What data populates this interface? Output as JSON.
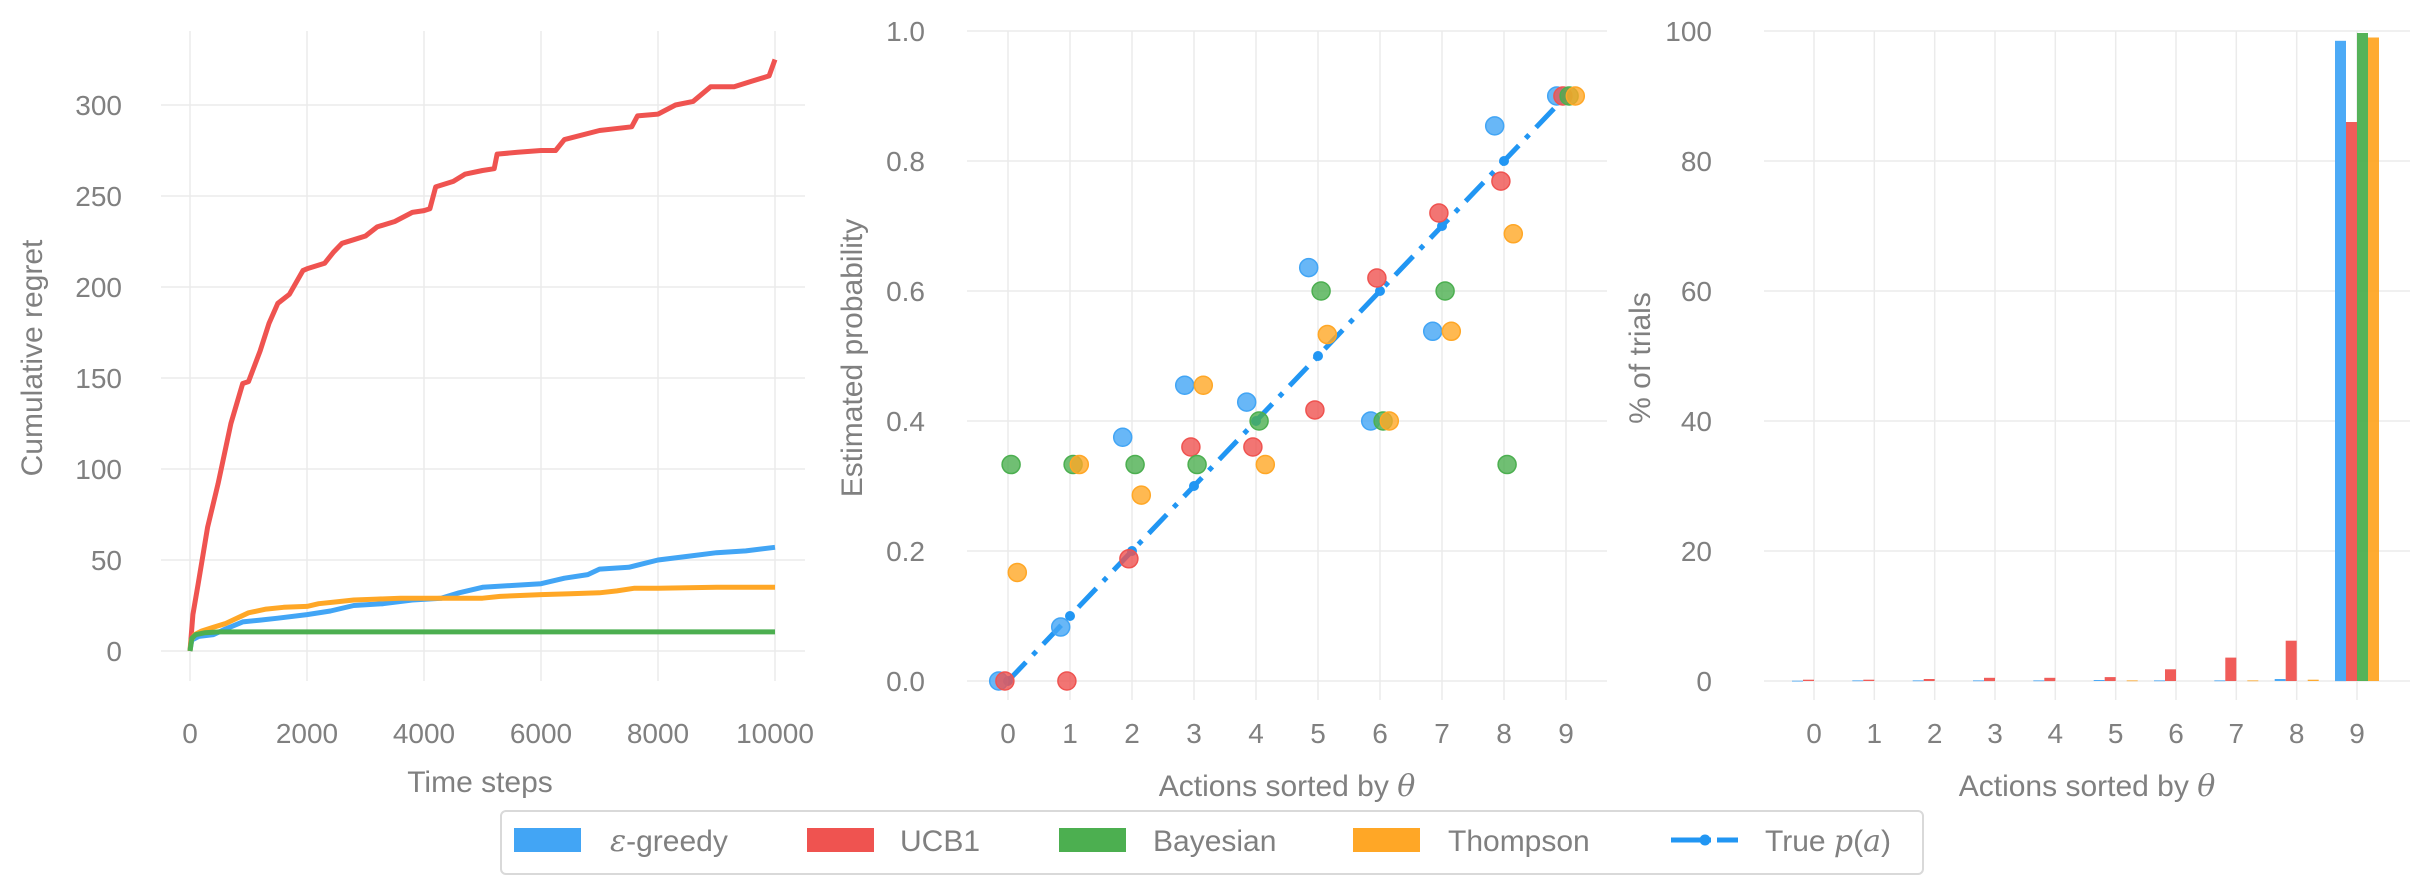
{
  "colors": {
    "epsilon_greedy": "#42a5f5",
    "ucb1": "#ef5350",
    "bayesian": "#4caf50",
    "thompson": "#ffa726",
    "true_p": "#2196f3",
    "text": "#808080",
    "grid": "#ebebeb"
  },
  "legend": {
    "items": [
      {
        "key": "epsilon_greedy",
        "label_symbol": "ε",
        "label_rest": "-greedy",
        "kind": "patch"
      },
      {
        "key": "ucb1",
        "label": "UCB1",
        "kind": "patch"
      },
      {
        "key": "bayesian",
        "label": "Bayesian",
        "kind": "patch"
      },
      {
        "key": "thompson",
        "label": "Thompson",
        "kind": "patch"
      },
      {
        "key": "true_p",
        "label_prefix": "True ",
        "label_math": "p",
        "label_paren_open": "(",
        "label_math_arg": "a",
        "label_paren_close": ")",
        "kind": "line"
      }
    ],
    "placement": "bottom-center"
  },
  "chart_data": [
    {
      "type": "line",
      "title": "",
      "xlabel": "Time steps",
      "ylabel": "Cumulative regret",
      "xlim": [
        0,
        10000
      ],
      "ylim": [
        -18,
        330
      ],
      "xticks": [
        0,
        2000,
        4000,
        6000,
        8000,
        10000
      ],
      "xtick_labels": [
        "0",
        "2000",
        "4000",
        "6000",
        "8000",
        "10000"
      ],
      "yticks": [
        0,
        50,
        100,
        150,
        200,
        250,
        300
      ],
      "ytick_labels": [
        "0",
        "50",
        "100",
        "150",
        "200",
        "250",
        "300"
      ],
      "grid": true,
      "series": [
        {
          "name": "UCB1",
          "key": "ucb1",
          "x": [
            0,
            50,
            140,
            300,
            480,
            700,
            900,
            1000,
            1200,
            1350,
            1500,
            1700,
            1930,
            2000,
            2300,
            2450,
            2600,
            2800,
            3000,
            3200,
            3500,
            3800,
            4000,
            4100,
            4200,
            4500,
            4700,
            5000,
            5200,
            5250,
            5600,
            6000,
            6250,
            6400,
            7000,
            7550,
            7650,
            8000,
            8300,
            8600,
            8900,
            9300,
            9600,
            9900,
            10000
          ],
          "y": [
            0,
            20,
            37,
            68,
            92,
            125,
            147,
            148,
            165,
            180,
            191,
            196,
            209,
            210,
            213,
            219,
            224,
            226,
            228,
            233,
            236,
            241,
            242,
            243,
            255,
            258,
            262,
            264,
            265,
            273,
            274,
            275,
            275,
            281,
            286,
            288,
            294,
            295,
            300,
            302,
            310,
            310,
            313,
            316,
            325
          ]
        },
        {
          "name": "ε-greedy",
          "key": "epsilon_greedy",
          "x": [
            0,
            30,
            150,
            400,
            600,
            900,
            1200,
            1500,
            2000,
            2400,
            2800,
            3300,
            3800,
            4300,
            4600,
            5000,
            5500,
            6000,
            6400,
            6800,
            7000,
            7500,
            8000,
            8500,
            9000,
            9500,
            10000
          ],
          "y": [
            0,
            6,
            8,
            9,
            12,
            16,
            17,
            18,
            20,
            22,
            25,
            26,
            28,
            29,
            32,
            35,
            36,
            37,
            40,
            42,
            45,
            46,
            50,
            52,
            54,
            55,
            57
          ]
        },
        {
          "name": "Bayesian",
          "key": "bayesian",
          "x": [
            0,
            30,
            100,
            250,
            500,
            10000
          ],
          "y": [
            0,
            7,
            9,
            10,
            10.5,
            10.5
          ]
        },
        {
          "name": "Thompson",
          "key": "thompson",
          "x": [
            0,
            20,
            80,
            200,
            400,
            600,
            800,
            1000,
            1300,
            1600,
            2000,
            2200,
            2500,
            2800,
            3200,
            3600,
            4000,
            5000,
            5300,
            6000,
            6500,
            7000,
            7300,
            7600,
            8000,
            9000,
            10000
          ],
          "y": [
            0,
            6,
            9,
            11,
            13,
            15,
            18,
            21,
            23,
            24,
            24.5,
            26,
            27,
            28,
            28.5,
            29,
            29,
            29,
            30,
            31,
            31.5,
            32,
            33,
            34.5,
            34.5,
            35,
            35
          ]
        }
      ]
    },
    {
      "type": "scatter",
      "title": "",
      "xlabel_prefix": "Actions sorted by ",
      "xlabel_symbol": "θ",
      "ylabel": "Estimated probability",
      "xlim": [
        -0.5,
        9.5
      ],
      "ylim": [
        -0.04,
        1.0
      ],
      "xticks": [
        0,
        1,
        2,
        3,
        4,
        5,
        6,
        7,
        8,
        9
      ],
      "xtick_labels": [
        "0",
        "1",
        "2",
        "3",
        "4",
        "5",
        "6",
        "7",
        "8",
        "9"
      ],
      "yticks": [
        0.0,
        0.2,
        0.4,
        0.6,
        0.8,
        1.0
      ],
      "ytick_labels": [
        "0.0",
        "0.2",
        "0.4",
        "0.6",
        "0.8",
        "1.0"
      ],
      "grid": true,
      "x": [
        0,
        1,
        2,
        3,
        4,
        5,
        6,
        7,
        8,
        9
      ],
      "series": [
        {
          "name": "ε-greedy",
          "key": "epsilon_greedy",
          "offset": -0.15,
          "values": [
            0.0,
            0.083,
            0.375,
            0.455,
            0.429,
            0.636,
            0.4,
            0.538,
            0.854,
            0.9
          ]
        },
        {
          "name": "UCB1",
          "key": "ucb1",
          "offset": -0.05,
          "values": [
            0.0,
            0.0,
            0.188,
            0.36,
            0.36,
            0.417,
            0.62,
            0.72,
            0.769,
            0.9
          ]
        },
        {
          "name": "Bayesian",
          "key": "bayesian",
          "offset": 0.05,
          "values": [
            0.333,
            0.333,
            0.333,
            0.333,
            0.4,
            0.6,
            0.4,
            0.6,
            0.333,
            0.9
          ]
        },
        {
          "name": "Thompson",
          "key": "thompson",
          "offset": 0.15,
          "values": [
            0.167,
            0.333,
            0.286,
            0.455,
            0.333,
            0.533,
            0.4,
            0.538,
            0.688,
            0.9
          ]
        },
        {
          "name": "True p(a)",
          "key": "true_p",
          "offset": 0,
          "style": "dash-dot with markers",
          "values": [
            0.0,
            0.1,
            0.2,
            0.3,
            0.4,
            0.5,
            0.6,
            0.7,
            0.8,
            0.9
          ]
        }
      ]
    },
    {
      "type": "bar",
      "title": "",
      "xlabel_prefix": "Actions sorted by ",
      "xlabel_symbol": "θ",
      "ylabel": "% of trials",
      "ylim": [
        -4,
        100
      ],
      "categories": [
        "0",
        "1",
        "2",
        "3",
        "4",
        "5",
        "6",
        "7",
        "8",
        "9"
      ],
      "yticks": [
        0,
        20,
        40,
        60,
        80,
        100
      ],
      "ytick_labels": [
        "0",
        "20",
        "40",
        "60",
        "80",
        "100"
      ],
      "grid": true,
      "series": [
        {
          "name": "ε-greedy",
          "key": "epsilon_greedy",
          "values": [
            0.05,
            0.1,
            0.1,
            0.1,
            0.1,
            0.15,
            0.1,
            0.1,
            0.3,
            98.5
          ]
        },
        {
          "name": "UCB1",
          "key": "ucb1",
          "values": [
            0.2,
            0.2,
            0.3,
            0.5,
            0.5,
            0.6,
            1.8,
            3.6,
            6.2,
            86.0
          ]
        },
        {
          "name": "Bayesian",
          "key": "bayesian",
          "values": [
            0,
            0,
            0,
            0,
            0,
            0,
            0,
            0,
            0,
            99.7
          ]
        },
        {
          "name": "Thompson",
          "key": "thompson",
          "values": [
            0,
            0,
            0,
            0,
            0,
            0.1,
            0,
            0.1,
            0.2,
            99.0
          ]
        }
      ]
    }
  ]
}
